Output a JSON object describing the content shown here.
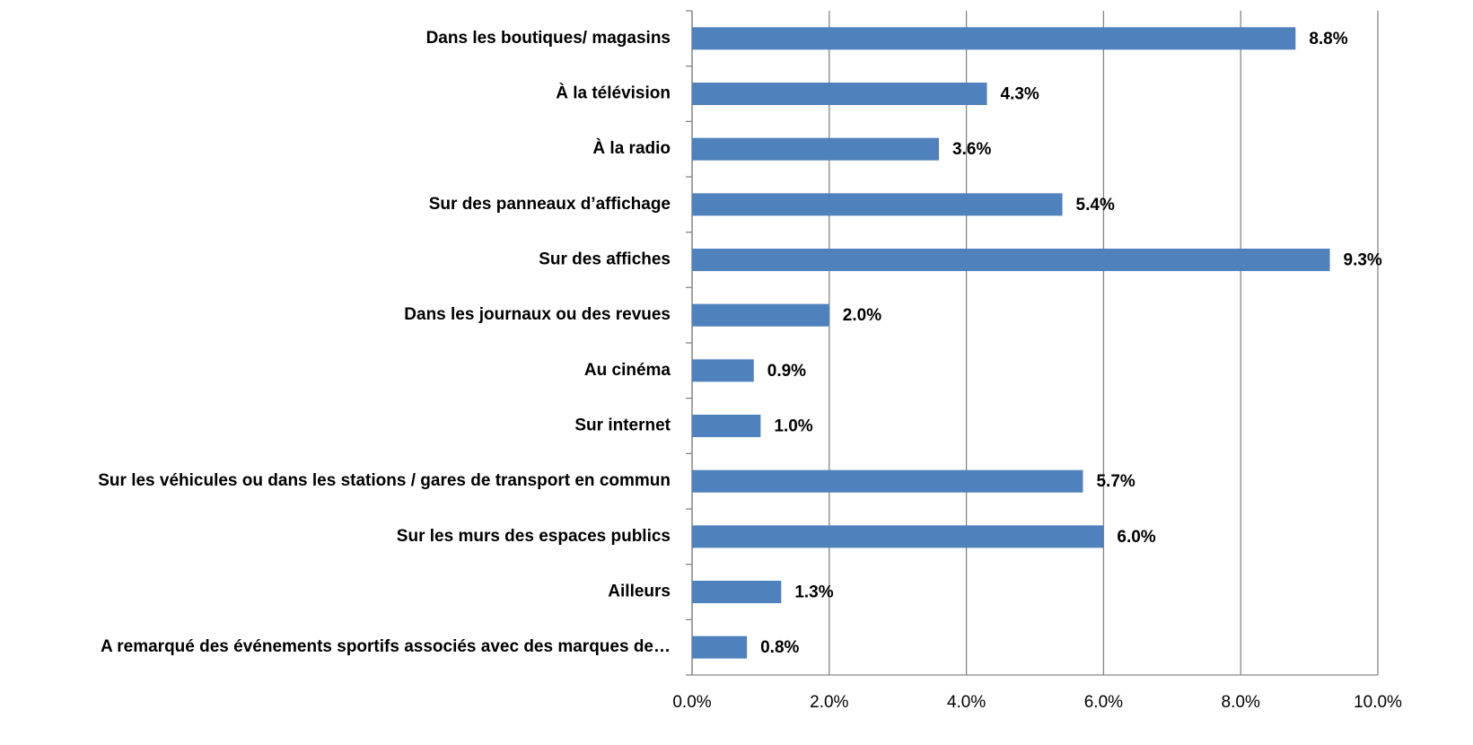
{
  "chart_data": {
    "type": "hbar",
    "categories": [
      "Dans les boutiques/ magasins",
      "À la télévision",
      "À la radio",
      "Sur des panneaux d’affichage",
      "Sur des affiches",
      "Dans les journaux ou des revues",
      "Au cinéma",
      "Sur internet",
      "Sur les véhicules ou dans les stations / gares de transport en commun",
      "Sur les murs des espaces publics",
      "Ailleurs",
      "A remarqué des événements sportifs associés  avec des marques de…"
    ],
    "values": [
      8.8,
      4.3,
      3.6,
      5.4,
      9.3,
      2.0,
      0.9,
      1.0,
      5.7,
      6.0,
      1.3,
      0.8
    ],
    "value_labels": [
      "8.8%",
      "4.3%",
      "3.6%",
      "5.4%",
      "9.3%",
      "2.0%",
      "0.9%",
      "1.0%",
      "5.7%",
      "6.0%",
      "1.3%",
      "0.8%"
    ],
    "color": "#4f81bd",
    "xlim": [
      0,
      10
    ],
    "xticks": [
      {
        "value": 0,
        "label": "0.0%"
      },
      {
        "value": 2,
        "label": "2.0%"
      },
      {
        "value": 4,
        "label": "4.0%"
      },
      {
        "value": 6,
        "label": "6.0%"
      },
      {
        "value": 8,
        "label": "8.0%"
      },
      {
        "value": 10,
        "label": "10.0%"
      }
    ],
    "grid": true
  }
}
